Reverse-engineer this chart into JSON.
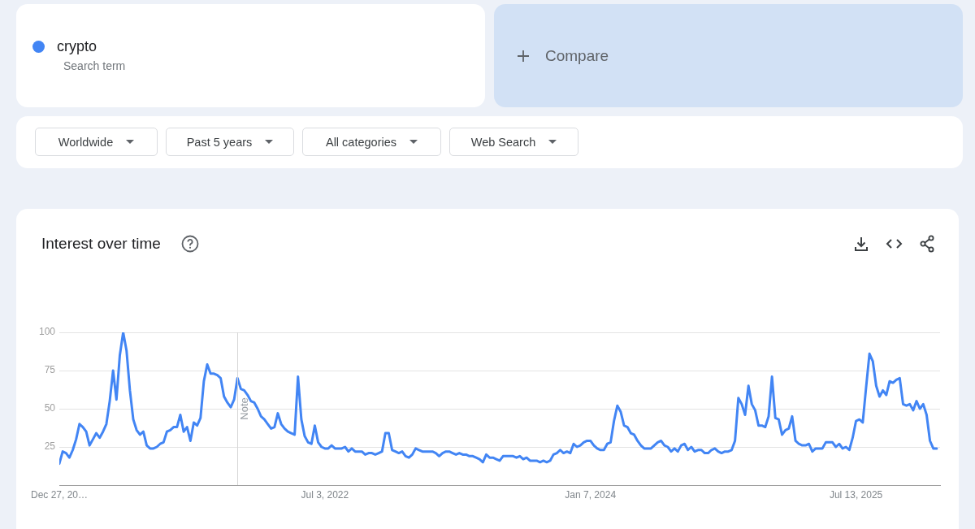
{
  "chart_data": {
    "type": "line",
    "title": "Interest over time",
    "legend": "top left",
    "grid": "y",
    "annotations": [
      "Search term",
      "Compare",
      "Worldwide",
      "Past 5 years",
      "All categories",
      "Web Search"
    ],
    "xlim": [
      "2020-12-27",
      "2026-01-04"
    ],
    "ylim": [
      0,
      100
    ],
    "xticks": [
      {
        "value": "2020-12-27",
        "label": "Dec 27, 20…"
      },
      {
        "value": "2022-07-03",
        "label": "Jul 3, 2022"
      },
      {
        "value": "2024-01-07",
        "label": "Jan 7, 2024"
      },
      {
        "value": "2025-07-13",
        "label": "Jul 13, 2025"
      }
    ],
    "yticks": [
      25,
      50,
      75,
      100
    ],
    "ref_lines": [
      {
        "axis": "x",
        "value": "2022-01-01",
        "label": "Note",
        "color": "#d6d6d6"
      }
    ],
    "x": [
      "2020-12-27",
      "2021-01-03",
      "2021-01-10",
      "2021-01-17",
      "2021-01-24",
      "2021-01-31",
      "2021-02-07",
      "2021-02-14",
      "2021-02-21",
      "2021-02-28",
      "2021-03-07",
      "2021-03-14",
      "2021-03-21",
      "2021-03-28",
      "2021-04-04",
      "2021-04-11",
      "2021-04-18",
      "2021-04-25",
      "2021-05-02",
      "2021-05-09",
      "2021-05-16",
      "2021-05-23",
      "2021-05-30",
      "2021-06-06",
      "2021-06-13",
      "2021-06-20",
      "2021-06-27",
      "2021-07-04",
      "2021-07-11",
      "2021-07-18",
      "2021-07-25",
      "2021-08-01",
      "2021-08-08",
      "2021-08-15",
      "2021-08-22",
      "2021-08-29",
      "2021-09-05",
      "2021-09-12",
      "2021-09-19",
      "2021-09-26",
      "2021-10-03",
      "2021-10-10",
      "2021-10-17",
      "2021-10-24",
      "2021-10-31",
      "2021-11-07",
      "2021-11-14",
      "2021-11-21",
      "2021-11-28",
      "2021-12-05",
      "2021-12-12",
      "2021-12-19",
      "2021-12-26",
      "2022-01-02",
      "2022-01-09",
      "2022-01-16",
      "2022-01-23",
      "2022-01-30",
      "2022-02-06",
      "2022-02-13",
      "2022-02-20",
      "2022-02-27",
      "2022-03-06",
      "2022-03-13",
      "2022-03-20",
      "2022-03-27",
      "2022-04-03",
      "2022-04-10",
      "2022-04-17",
      "2022-04-24",
      "2022-05-01",
      "2022-05-08",
      "2022-05-15",
      "2022-05-22",
      "2022-05-29",
      "2022-06-05",
      "2022-06-12",
      "2022-06-19",
      "2022-06-26",
      "2022-07-03",
      "2022-07-10",
      "2022-07-17",
      "2022-07-24",
      "2022-07-31",
      "2022-08-07",
      "2022-08-14",
      "2022-08-21",
      "2022-08-28",
      "2022-09-04",
      "2022-09-11",
      "2022-09-18",
      "2022-09-25",
      "2022-10-02",
      "2022-10-09",
      "2022-10-16",
      "2022-10-23",
      "2022-10-30",
      "2022-11-06",
      "2022-11-13",
      "2022-11-20",
      "2022-11-27",
      "2022-12-04",
      "2022-12-11",
      "2022-12-18",
      "2022-12-25",
      "2023-01-01",
      "2023-01-08",
      "2023-01-15",
      "2023-01-22",
      "2023-01-29",
      "2023-02-05",
      "2023-02-12",
      "2023-02-19",
      "2023-02-26",
      "2023-03-05",
      "2023-03-12",
      "2023-03-19",
      "2023-03-26",
      "2023-04-02",
      "2023-04-09",
      "2023-04-16",
      "2023-04-23",
      "2023-04-30",
      "2023-05-07",
      "2023-05-14",
      "2023-05-21",
      "2023-05-28",
      "2023-06-04",
      "2023-06-11",
      "2023-06-18",
      "2023-06-25",
      "2023-07-02",
      "2023-07-09",
      "2023-07-16",
      "2023-07-23",
      "2023-07-30",
      "2023-08-06",
      "2023-08-13",
      "2023-08-20",
      "2023-08-27",
      "2023-09-03",
      "2023-09-10",
      "2023-09-17",
      "2023-09-24",
      "2023-10-01",
      "2023-10-08",
      "2023-10-15",
      "2023-10-22",
      "2023-10-29",
      "2023-11-05",
      "2023-11-12",
      "2023-11-19",
      "2023-11-26",
      "2023-12-03",
      "2023-12-10",
      "2023-12-17",
      "2023-12-24",
      "2023-12-31",
      "2024-01-07",
      "2024-01-14",
      "2024-01-21",
      "2024-01-28",
      "2024-02-04",
      "2024-02-11",
      "2024-02-18",
      "2024-02-25",
      "2024-03-03",
      "2024-03-10",
      "2024-03-17",
      "2024-03-24",
      "2024-03-31",
      "2024-04-07",
      "2024-04-14",
      "2024-04-21",
      "2024-04-28",
      "2024-05-05",
      "2024-05-12",
      "2024-05-19",
      "2024-05-26",
      "2024-06-02",
      "2024-06-09",
      "2024-06-16",
      "2024-06-23",
      "2024-06-30",
      "2024-07-07",
      "2024-07-14",
      "2024-07-21",
      "2024-07-28",
      "2024-08-04",
      "2024-08-11",
      "2024-08-18",
      "2024-08-25",
      "2024-09-01",
      "2024-09-08",
      "2024-09-15",
      "2024-09-22",
      "2024-09-29",
      "2024-10-06",
      "2024-10-13",
      "2024-10-20",
      "2024-10-27",
      "2024-11-03",
      "2024-11-10",
      "2024-11-17",
      "2024-11-24",
      "2024-12-01",
      "2024-12-08",
      "2024-12-15",
      "2024-12-22",
      "2024-12-29",
      "2025-01-05",
      "2025-01-12",
      "2025-01-19",
      "2025-01-26",
      "2025-02-02",
      "2025-02-09",
      "2025-02-16",
      "2025-02-23",
      "2025-03-02",
      "2025-03-09",
      "2025-03-16",
      "2025-03-23",
      "2025-03-30",
      "2025-04-06",
      "2025-04-13",
      "2025-04-20",
      "2025-04-27",
      "2025-05-04",
      "2025-05-11",
      "2025-05-18",
      "2025-05-25",
      "2025-06-01",
      "2025-06-08",
      "2025-06-15",
      "2025-06-22",
      "2025-06-29",
      "2025-07-06",
      "2025-07-13",
      "2025-07-20",
      "2025-07-27",
      "2025-08-03",
      "2025-08-10",
      "2025-08-17",
      "2025-08-24",
      "2025-08-31",
      "2025-09-07",
      "2025-09-14",
      "2025-09-21",
      "2025-09-28",
      "2025-10-05",
      "2025-10-12",
      "2025-10-19",
      "2025-10-26",
      "2025-11-02",
      "2025-11-09",
      "2025-11-16",
      "2025-11-23",
      "2025-11-30",
      "2025-12-07",
      "2025-12-14",
      "2025-12-21",
      "2025-12-28"
    ],
    "series": [
      {
        "name": "crypto",
        "color": "#4285f4",
        "values": [
          14,
          22,
          21,
          18,
          23,
          30,
          40,
          38,
          35,
          26,
          30,
          34,
          31,
          35,
          40,
          55,
          75,
          56,
          85,
          100,
          88,
          62,
          43,
          36,
          33,
          35,
          26,
          24,
          24,
          25,
          27,
          28,
          35,
          36,
          38,
          38,
          46,
          35,
          38,
          29,
          41,
          39,
          44,
          68,
          79,
          73,
          73,
          72,
          70,
          58,
          54,
          51,
          56,
          70,
          63,
          62,
          59,
          55,
          54,
          50,
          45,
          43,
          40,
          37,
          38,
          47,
          40,
          37,
          35,
          34,
          33,
          71,
          43,
          32,
          28,
          27,
          39,
          28,
          25,
          24,
          24,
          26,
          24,
          24,
          24,
          25,
          22,
          24,
          22,
          22,
          22,
          20,
          21,
          21,
          20,
          21,
          22,
          34,
          34,
          23,
          22,
          21,
          22,
          19,
          18,
          20,
          24,
          23,
          22,
          22,
          22,
          22,
          21,
          19,
          21,
          22,
          22,
          21,
          20,
          21,
          20,
          20,
          19,
          19,
          18,
          17,
          15,
          20,
          18,
          18,
          17,
          16,
          19,
          19,
          19,
          19,
          18,
          19,
          17,
          18,
          16,
          16,
          16,
          15,
          16,
          15,
          16,
          20,
          21,
          23,
          21,
          22,
          21,
          27,
          25,
          26,
          28,
          29,
          29,
          26,
          24,
          23,
          23,
          27,
          28,
          42,
          52,
          48,
          39,
          38,
          34,
          33,
          29,
          26,
          24,
          24,
          24,
          26,
          28,
          29,
          26,
          25,
          22,
          24,
          22,
          26,
          27,
          23,
          25,
          22,
          23,
          23,
          21,
          21,
          23,
          24,
          22,
          21,
          22,
          22,
          23,
          29,
          57,
          53,
          46,
          65,
          53,
          49,
          39,
          39,
          38,
          45,
          71,
          44,
          43,
          33,
          36,
          37,
          45,
          29,
          27,
          26,
          26,
          27,
          22,
          24,
          24,
          24,
          28,
          28,
          28,
          25,
          27,
          24,
          25,
          23,
          31,
          42,
          43,
          41,
          64,
          86,
          81,
          65,
          58,
          62,
          59,
          68,
          67,
          69,
          70,
          53,
          52,
          53,
          49,
          55,
          50,
          53,
          46,
          29,
          24,
          24
        ]
      }
    ]
  }
}
